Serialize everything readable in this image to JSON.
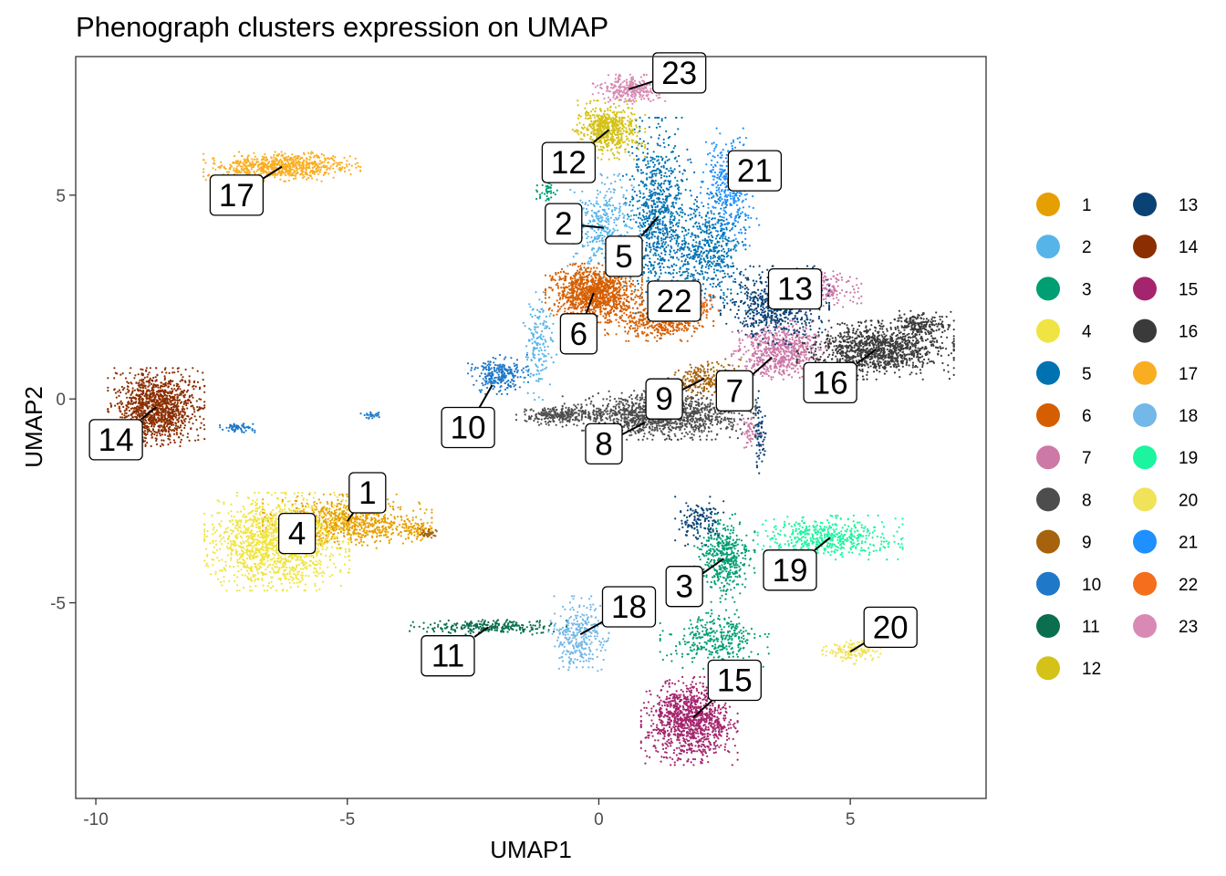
{
  "chart_data": {
    "type": "scatter",
    "title": "Phenograph clusters expression on UMAP",
    "xlabel": "UMAP1",
    "ylabel": "UMAP2",
    "xlim": [
      -10.4,
      7.7
    ],
    "ylim": [
      -9.8,
      8.4
    ],
    "xticks": [
      -10,
      -5,
      0,
      5
    ],
    "yticks": [
      -5,
      0,
      5
    ],
    "xtick_labels": [
      "-10",
      "-5",
      "0",
      "5"
    ],
    "ytick_labels": [
      "-5",
      "0",
      "5"
    ],
    "grid": false,
    "legend_position": "right",
    "series": [
      {
        "name": "1",
        "color": "#E69F00",
        "label_at": [
          -4.6,
          -2.3
        ],
        "regions": [
          {
            "cx": -5.0,
            "cy": -3.0,
            "rx": 1.4,
            "ry": 0.55,
            "n": 850
          },
          {
            "cx": -3.6,
            "cy": -3.2,
            "rx": 0.35,
            "ry": 0.2,
            "n": 70
          }
        ]
      },
      {
        "name": "2",
        "color": "#56B4E9",
        "label_at": [
          -0.7,
          4.3
        ],
        "regions": [
          {
            "cx": 0.1,
            "cy": 4.2,
            "rx": 0.6,
            "ry": 1.1,
            "n": 380
          },
          {
            "cx": -1.2,
            "cy": 1.3,
            "rx": 0.3,
            "ry": 1.1,
            "n": 160
          }
        ]
      },
      {
        "name": "3",
        "color": "#009E73",
        "label_at": [
          1.7,
          -4.6
        ],
        "regions": [
          {
            "cx": 2.5,
            "cy": -3.9,
            "rx": 0.5,
            "ry": 0.9,
            "n": 420
          },
          {
            "cx": 2.3,
            "cy": -5.9,
            "rx": 0.9,
            "ry": 0.6,
            "n": 320
          },
          {
            "cx": -1.0,
            "cy": 5.1,
            "rx": 0.2,
            "ry": 0.3,
            "n": 40
          }
        ]
      },
      {
        "name": "4",
        "color": "#F0E442",
        "label_at": [
          -6.0,
          -3.3
        ],
        "regions": [
          {
            "cx": -6.4,
            "cy": -3.5,
            "rx": 1.2,
            "ry": 1.0,
            "n": 1500
          }
        ]
      },
      {
        "name": "5",
        "color": "#0072B2",
        "label_at": [
          0.5,
          3.5
        ],
        "regions": [
          {
            "cx": 1.2,
            "cy": 4.5,
            "rx": 0.6,
            "ry": 2.0,
            "n": 850
          },
          {
            "cx": 2.2,
            "cy": 3.6,
            "rx": 0.6,
            "ry": 1.2,
            "n": 500
          }
        ]
      },
      {
        "name": "6",
        "color": "#D55E00",
        "label_at": [
          -0.4,
          1.6
        ],
        "regions": [
          {
            "cx": -0.1,
            "cy": 2.6,
            "rx": 0.8,
            "ry": 0.6,
            "n": 1100
          },
          {
            "cx": 1.2,
            "cy": 1.9,
            "rx": 0.9,
            "ry": 0.4,
            "n": 420
          }
        ]
      },
      {
        "name": "7",
        "color": "#CC79A7",
        "label_at": [
          2.7,
          0.2
        ],
        "regions": [
          {
            "cx": 3.6,
            "cy": 1.2,
            "rx": 0.8,
            "ry": 0.6,
            "n": 650
          },
          {
            "cx": 4.5,
            "cy": 2.7,
            "rx": 0.6,
            "ry": 0.4,
            "n": 180
          },
          {
            "cx": 3.0,
            "cy": -0.8,
            "rx": 0.2,
            "ry": 0.4,
            "n": 50
          }
        ]
      },
      {
        "name": "8",
        "color": "#4D4D4D",
        "label_at": [
          0.1,
          -1.1
        ],
        "regions": [
          {
            "cx": 1.2,
            "cy": -0.4,
            "rx": 1.6,
            "ry": 0.5,
            "n": 1300
          },
          {
            "cx": -0.8,
            "cy": -0.4,
            "rx": 0.7,
            "ry": 0.2,
            "n": 250
          }
        ]
      },
      {
        "name": "9",
        "color": "#A6620C",
        "label_at": [
          1.3,
          0.0
        ],
        "regions": [
          {
            "cx": 2.1,
            "cy": 0.5,
            "rx": 0.6,
            "ry": 0.4,
            "n": 240
          },
          {
            "cx": -3.4,
            "cy": -3.3,
            "rx": 0.2,
            "ry": 0.1,
            "n": 40
          }
        ]
      },
      {
        "name": "10",
        "color": "#1F78C8",
        "label_at": [
          -2.6,
          -0.7
        ],
        "regions": [
          {
            "cx": -2.0,
            "cy": 0.6,
            "rx": 0.5,
            "ry": 0.4,
            "n": 260
          },
          {
            "cx": -7.2,
            "cy": -0.7,
            "rx": 0.3,
            "ry": 0.1,
            "n": 60
          },
          {
            "cx": -4.5,
            "cy": -0.4,
            "rx": 0.2,
            "ry": 0.1,
            "n": 25
          }
        ]
      },
      {
        "name": "11",
        "color": "#0B6E4F",
        "label_at": [
          -3.0,
          -6.3
        ],
        "regions": [
          {
            "cx": -2.2,
            "cy": -5.6,
            "rx": 1.3,
            "ry": 0.15,
            "n": 260
          }
        ]
      },
      {
        "name": "12",
        "color": "#D4C218",
        "label_at": [
          -0.6,
          5.8
        ],
        "regions": [
          {
            "cx": 0.2,
            "cy": 6.6,
            "rx": 0.6,
            "ry": 0.6,
            "n": 600
          }
        ]
      },
      {
        "name": "13",
        "color": "#0B4275",
        "label_at": [
          3.9,
          2.7
        ],
        "regions": [
          {
            "cx": 3.5,
            "cy": 2.3,
            "rx": 0.9,
            "ry": 0.8,
            "n": 650
          },
          {
            "cx": 2.0,
            "cy": -3.0,
            "rx": 0.4,
            "ry": 0.5,
            "n": 140
          },
          {
            "cx": 3.2,
            "cy": -0.8,
            "rx": 0.1,
            "ry": 0.9,
            "n": 70
          }
        ]
      },
      {
        "name": "14",
        "color": "#8B2E00",
        "label_at": [
          -9.6,
          -1.0
        ],
        "regions": [
          {
            "cx": -8.8,
            "cy": -0.2,
            "rx": 0.8,
            "ry": 0.8,
            "n": 1200
          }
        ]
      },
      {
        "name": "15",
        "color": "#A4256E",
        "label_at": [
          2.7,
          -6.9
        ],
        "regions": [
          {
            "cx": 1.8,
            "cy": -7.9,
            "rx": 0.8,
            "ry": 0.9,
            "n": 1100
          }
        ]
      },
      {
        "name": "16",
        "color": "#3A3A3A",
        "label_at": [
          4.6,
          0.4
        ],
        "regions": [
          {
            "cx": 5.5,
            "cy": 1.2,
            "rx": 1.3,
            "ry": 0.6,
            "n": 1100
          },
          {
            "cx": 6.4,
            "cy": 1.8,
            "rx": 0.5,
            "ry": 0.3,
            "n": 200
          }
        ]
      },
      {
        "name": "17",
        "color": "#F9AE22",
        "label_at": [
          -7.2,
          5.0
        ],
        "regions": [
          {
            "cx": -6.3,
            "cy": 5.7,
            "rx": 1.3,
            "ry": 0.3,
            "n": 700
          }
        ]
      },
      {
        "name": "18",
        "color": "#73B8E8",
        "label_at": [
          0.6,
          -5.1
        ],
        "regions": [
          {
            "cx": -0.4,
            "cy": -5.8,
            "rx": 0.5,
            "ry": 0.8,
            "n": 320
          }
        ]
      },
      {
        "name": "19",
        "color": "#1BF59F",
        "label_at": [
          3.8,
          -4.2
        ],
        "regions": [
          {
            "cx": 4.6,
            "cy": -3.4,
            "rx": 1.2,
            "ry": 0.45,
            "n": 480
          }
        ]
      },
      {
        "name": "20",
        "color": "#F0E35A",
        "label_at": [
          5.8,
          -5.6
        ],
        "regions": [
          {
            "cx": 5.0,
            "cy": -6.2,
            "rx": 0.5,
            "ry": 0.25,
            "n": 150
          }
        ]
      },
      {
        "name": "21",
        "color": "#1E90FF",
        "label_at": [
          3.1,
          5.6
        ],
        "regions": [
          {
            "cx": 2.6,
            "cy": 5.2,
            "rx": 0.5,
            "ry": 1.2,
            "n": 380
          }
        ]
      },
      {
        "name": "22",
        "color": "#F46E1E",
        "label_at": [
          1.5,
          2.4
        ],
        "regions": [
          {
            "cx": 1.9,
            "cy": 2.3,
            "rx": 0.4,
            "ry": 0.3,
            "n": 130
          }
        ]
      },
      {
        "name": "23",
        "color": "#D88AB4",
        "label_at": [
          1.6,
          8.0
        ],
        "regions": [
          {
            "cx": 0.6,
            "cy": 7.6,
            "rx": 0.6,
            "ry": 0.3,
            "n": 260
          }
        ]
      }
    ]
  }
}
